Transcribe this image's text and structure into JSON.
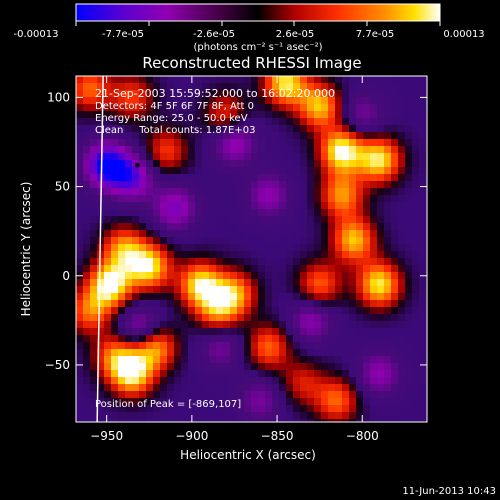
{
  "colorbar": {
    "tick_labels": [
      "-0.00013",
      "-7.7e-05",
      "-2.6e-05",
      "2.6e-05",
      "7.7e-05",
      "0.00013"
    ],
    "unit_label": "(photons cm⁻² s⁻¹ asec⁻²)",
    "range": [
      -0.00013,
      0.00013
    ],
    "colors": [
      "#0000ff",
      "#5a00d0",
      "#9000b0",
      "#000000",
      "#b00000",
      "#ff3000",
      "#ff9000",
      "#ffe000",
      "#ffffff"
    ]
  },
  "chart_data": {
    "type": "heatmap",
    "title": "Reconstructed RHESSI Image",
    "xlabel": "Heliocentric X (arcsec)",
    "ylabel": "Heliocentric Y (arcsec)",
    "xlim": [
      -968,
      -762
    ],
    "ylim": [
      -82,
      112
    ],
    "x_ticks": [
      -950,
      -900,
      -850,
      -800
    ],
    "y_ticks": [
      -50,
      0,
      50,
      100
    ],
    "x_tick_labels": [
      "−950",
      "−900",
      "−850",
      "−800"
    ],
    "y_tick_labels": [
      "−50",
      "0",
      "50",
      "100"
    ],
    "limb_x": -955,
    "peak": {
      "x": -869,
      "y": 107
    },
    "annotations": [
      "21-Sep-2003 15:59:52.000 to 16:02:20.000",
      "Detectors: 4F 5F 6F 7F 8F, Att 0",
      "Energy Range: 25.0 - 50.0 keV",
      "Clean     Total counts: 1.87E+03"
    ],
    "peak_label": "Position of Peak = [-869,107]",
    "blobs": [
      {
        "x": -950,
        "y": 62,
        "v": -1.0
      },
      {
        "x": -935,
        "y": 55,
        "v": -0.7
      },
      {
        "x": -875,
        "y": 75,
        "v": -0.6
      },
      {
        "x": -910,
        "y": 38,
        "v": -0.6
      },
      {
        "x": -855,
        "y": 45,
        "v": -0.5
      },
      {
        "x": -800,
        "y": 90,
        "v": -0.4
      },
      {
        "x": -830,
        "y": -25,
        "v": -0.5
      },
      {
        "x": -930,
        "y": -30,
        "v": -0.6
      },
      {
        "x": -883,
        "y": -40,
        "v": -0.4
      },
      {
        "x": -790,
        "y": -55,
        "v": -0.5
      },
      {
        "x": -860,
        "y": -70,
        "v": -0.4
      },
      {
        "x": -960,
        "y": 105,
        "v": 0.6
      },
      {
        "x": -935,
        "y": 100,
        "v": 0.5
      },
      {
        "x": -915,
        "y": 70,
        "v": 0.5
      },
      {
        "x": -845,
        "y": 108,
        "v": 0.9
      },
      {
        "x": -825,
        "y": 95,
        "v": 0.8
      },
      {
        "x": -812,
        "y": 70,
        "v": 1.0
      },
      {
        "x": -790,
        "y": 65,
        "v": 0.9
      },
      {
        "x": -805,
        "y": 20,
        "v": 0.8
      },
      {
        "x": -790,
        "y": -5,
        "v": 0.9
      },
      {
        "x": -825,
        "y": -5,
        "v": 0.6
      },
      {
        "x": -812,
        "y": 45,
        "v": 0.7
      },
      {
        "x": -948,
        "y": -5,
        "v": 1.0
      },
      {
        "x": -925,
        "y": 5,
        "v": 0.9
      },
      {
        "x": -940,
        "y": 15,
        "v": 0.7
      },
      {
        "x": -960,
        "y": -20,
        "v": 0.6
      },
      {
        "x": -895,
        "y": -5,
        "v": 0.9
      },
      {
        "x": -875,
        "y": -10,
        "v": 0.7
      },
      {
        "x": -885,
        "y": -20,
        "v": 0.6
      },
      {
        "x": -935,
        "y": -55,
        "v": 0.9
      },
      {
        "x": -922,
        "y": -40,
        "v": 0.8
      },
      {
        "x": -945,
        "y": -45,
        "v": 0.6
      },
      {
        "x": -855,
        "y": -40,
        "v": 0.6
      },
      {
        "x": -815,
        "y": -70,
        "v": 0.6
      },
      {
        "x": -835,
        "y": -60,
        "v": 0.4
      },
      {
        "x": -880,
        "y": 90,
        "v": 0.5
      }
    ]
  },
  "footer_timestamp": "11-Jun-2013 10:43"
}
